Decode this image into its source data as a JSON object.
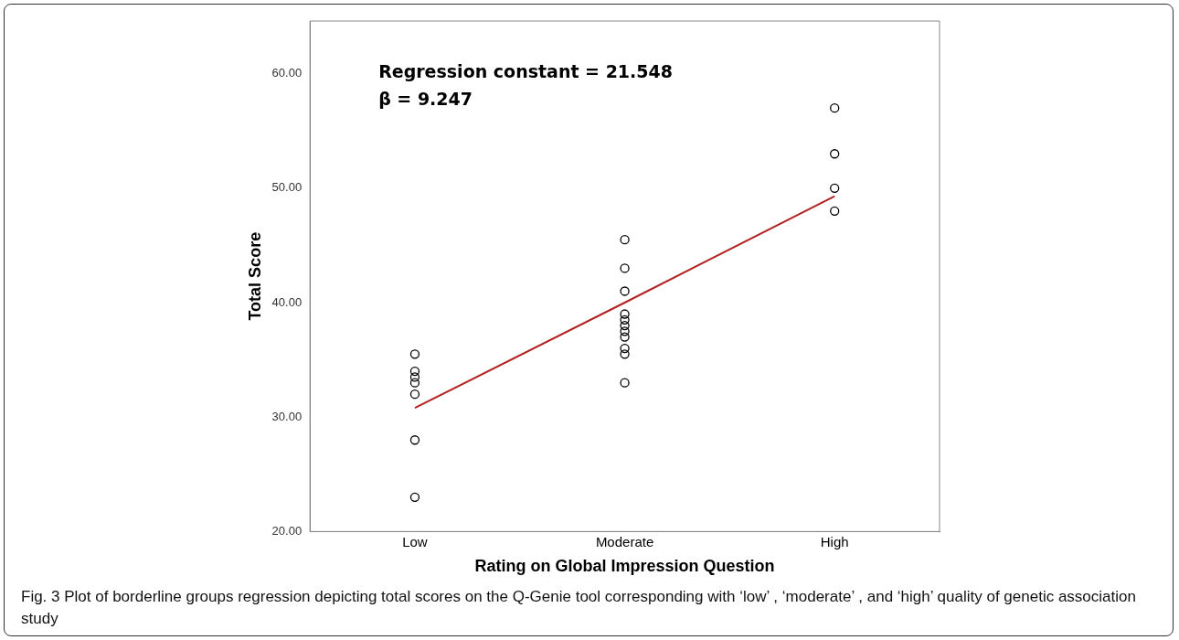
{
  "chart_data": {
    "type": "scatter",
    "xlabel": "Rating on Global Impression Question",
    "ylabel": "Total Score",
    "categories": [
      "Low",
      "Moderate",
      "High"
    ],
    "ylim": [
      20,
      64.6
    ],
    "yticks": [
      {
        "value": 20,
        "label": "20.00"
      },
      {
        "value": 30,
        "label": "30.00"
      },
      {
        "value": 40,
        "label": "40.00"
      },
      {
        "value": 50,
        "label": "50.00"
      },
      {
        "value": 60,
        "label": "60.00"
      }
    ],
    "marker": "circle",
    "grid": false,
    "legend": false,
    "series": [
      {
        "color": "#000000",
        "x": [
          "Low",
          "Low",
          "Low",
          "Low",
          "Low",
          "Low",
          "Low",
          "Moderate",
          "Moderate",
          "Moderate",
          "Moderate",
          "Moderate",
          "Moderate",
          "Moderate",
          "Moderate",
          "Moderate",
          "Moderate",
          "Moderate",
          "High",
          "High",
          "High",
          "High"
        ],
        "values": [
          35.5,
          34,
          33.5,
          33,
          32,
          28,
          23,
          45.5,
          43,
          41,
          39,
          38.5,
          38,
          37.5,
          37,
          36,
          35.5,
          33,
          57,
          53,
          50,
          48
        ]
      },
      {
        "type": "line",
        "color": "#b22222",
        "marker": "none",
        "x": [
          "Low",
          "Moderate",
          "High"
        ],
        "values": [
          30.8,
          40.0,
          49.3
        ]
      }
    ],
    "annotations": [
      "Regression constant = 21.548",
      "β = 9.247",
      "Fig. 3 Plot of borderline groups regression depicting total scores on the Q-Genie tool corresponding with ‘low’ , ‘moderate’ , and ‘high’ quality of genetic association study"
    ]
  }
}
